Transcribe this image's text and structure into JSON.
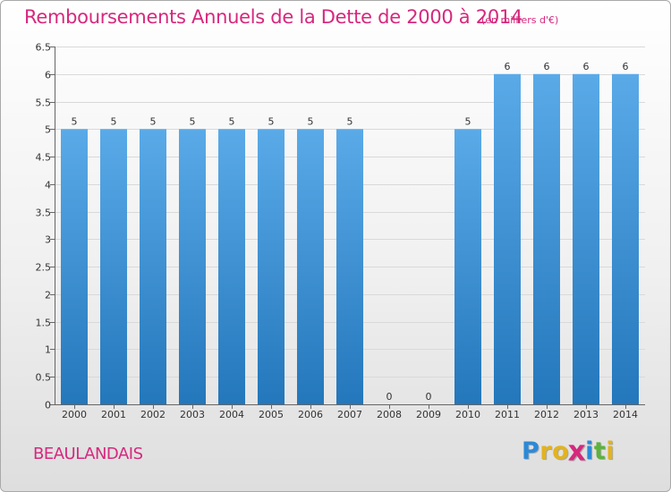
{
  "header": {
    "title": "Remboursements Annuels de la Dette de 2000 à 2014",
    "unit": "(en milliers d'€)"
  },
  "footer": {
    "commune": "BEAULANDAIS",
    "logo_letters": [
      "P",
      "r",
      "o",
      "x",
      "i",
      "t",
      "i"
    ]
  },
  "colors": {
    "title": "#d6287d",
    "bar_light": "#5aaae8",
    "bar_dark": "#2377bb"
  },
  "chart_data": {
    "type": "bar",
    "title": "Remboursements Annuels de la Dette de 2000 à 2014",
    "unit": "(en milliers d'€)",
    "categories": [
      "2000",
      "2001",
      "2002",
      "2003",
      "2004",
      "2005",
      "2006",
      "2007",
      "2008",
      "2009",
      "2010",
      "2011",
      "2012",
      "2013",
      "2014"
    ],
    "values": [
      5,
      5,
      5,
      5,
      5,
      5,
      5,
      5,
      0,
      0,
      5,
      6,
      6,
      6,
      6
    ],
    "ylim": [
      0,
      6.5
    ],
    "yticks": [
      "0",
      "0.5",
      "1",
      "1.5",
      "2",
      "2.5",
      "3",
      "3.5",
      "4",
      "4.5",
      "5",
      "5.5",
      "6",
      "6.5"
    ],
    "grid": true,
    "legend": "none"
  }
}
